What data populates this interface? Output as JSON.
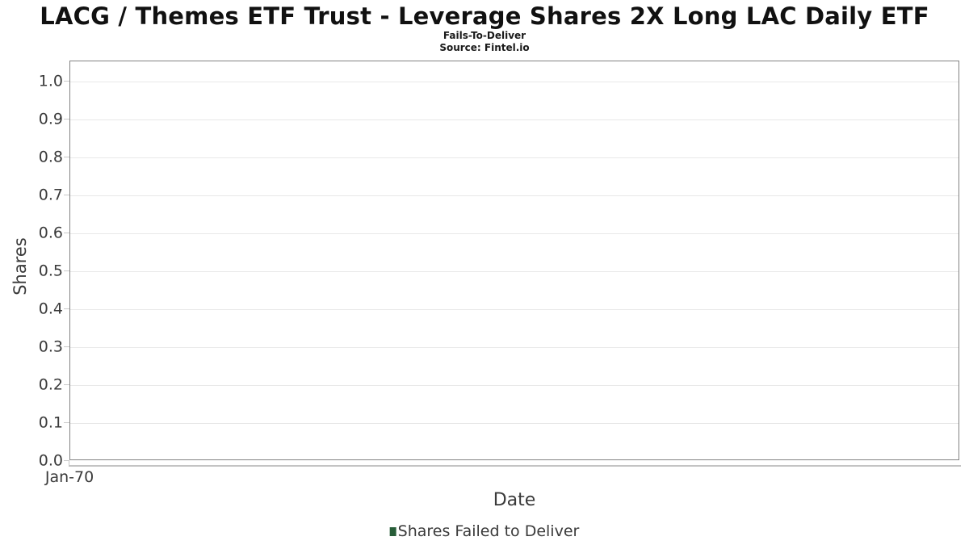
{
  "title": "LACG / Themes ETF Trust - Leverage Shares 2X Long LAC Daily ETF",
  "subtitle": "Fails-To-Deliver",
  "source": "Source: Fintel.io",
  "axes": {
    "y_label": "Shares",
    "x_label": "Date",
    "y_ticks": [
      "1.0",
      "0.9",
      "0.8",
      "0.7",
      "0.6",
      "0.5",
      "0.4",
      "0.3",
      "0.2",
      "0.1",
      "0.0"
    ],
    "x_ticks": [
      "Jan-70"
    ]
  },
  "legend": {
    "label": "Shares Failed to Deliver",
    "marker_color": "#275d38"
  },
  "colors": {
    "grid": "#e8e8e8",
    "plot_border": "#828282",
    "tick_mark": "#c9c9c9",
    "axis_line": "#c4c4c4",
    "text": "#3a3a3a",
    "title_text": "#111111"
  },
  "chart_data": {
    "type": "bar",
    "title": "LACG / Themes ETF Trust - Leverage Shares 2X Long LAC Daily ETF",
    "subtitle": "Fails-To-Deliver",
    "source": "Source: Fintel.io",
    "x": [
      "Jan-70"
    ],
    "series": [
      {
        "name": "Shares Failed to Deliver",
        "color": "#275d38",
        "values": []
      }
    ],
    "xlabel": "Date",
    "ylabel": "Shares",
    "ylim": [
      0.0,
      1.0
    ],
    "yticks": [
      0.0,
      0.1,
      0.2,
      0.3,
      0.4,
      0.5,
      0.6,
      0.7,
      0.8,
      0.9,
      1.0
    ],
    "grid": true,
    "legend_position": "bottom-center"
  }
}
